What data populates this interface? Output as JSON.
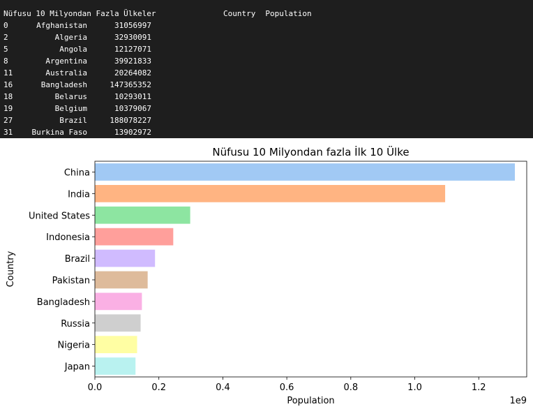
{
  "console": {
    "heading": "Nüfusu 10 Milyondan Fazla Ülkeler",
    "columns": [
      "Country",
      "Population"
    ],
    "rows": [
      {
        "index": "0",
        "country": "Afghanistan",
        "population": "31056997"
      },
      {
        "index": "2",
        "country": "Algeria",
        "population": "32930091"
      },
      {
        "index": "5",
        "country": "Angola",
        "population": "12127071"
      },
      {
        "index": "8",
        "country": "Argentina",
        "population": "39921833"
      },
      {
        "index": "11",
        "country": "Australia",
        "population": "20264082"
      },
      {
        "index": "16",
        "country": "Bangladesh",
        "population": "147365352"
      },
      {
        "index": "18",
        "country": "Belarus",
        "population": "10293011"
      },
      {
        "index": "19",
        "country": "Belgium",
        "population": "10379067"
      },
      {
        "index": "27",
        "country": "Brazil",
        "population": "188078227"
      },
      {
        "index": "31",
        "country": "Burkina Faso",
        "population": "13902972"
      }
    ]
  },
  "chart_data": {
    "type": "bar",
    "orientation": "horizontal",
    "title": "Nüfusu 10 Milyondan fazla İlk 10 Ülke",
    "xlabel": "Population",
    "ylabel": "Country",
    "x_offset_label": "1e9",
    "xlim": [
      0,
      1.35
    ],
    "xticks": [
      "0.0",
      "0.2",
      "0.4",
      "0.6",
      "0.8",
      "1.0",
      "1.2"
    ],
    "grid": false,
    "categories": [
      "China",
      "India",
      "United States",
      "Indonesia",
      "Brazil",
      "Pakistan",
      "Bangladesh",
      "Russia",
      "Nigeria",
      "Japan"
    ],
    "values": [
      1.313,
      1.095,
      0.298,
      0.245,
      0.188,
      0.165,
      0.147,
      0.143,
      0.132,
      0.127
    ],
    "colors": [
      "#a1c9f4",
      "#ffb482",
      "#8de5a1",
      "#ff9f9b",
      "#d0bbff",
      "#debb9b",
      "#fab0e4",
      "#cfcfcf",
      "#fffea3",
      "#b9f2f0"
    ]
  }
}
